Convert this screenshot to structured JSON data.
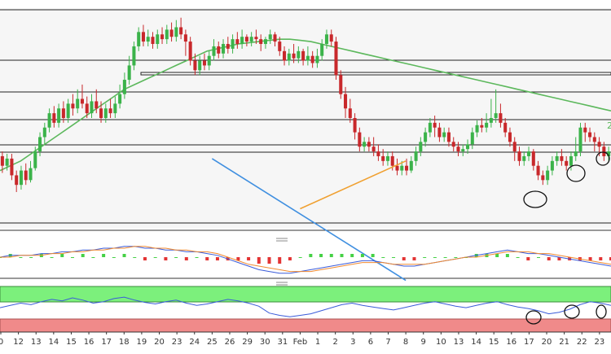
{
  "chart_data": [
    {
      "type": "candlestick",
      "panel": "price",
      "x_tick_labels": [
        "0",
        "12",
        "13",
        "14",
        "15",
        "16",
        "17",
        "18",
        "19",
        "20",
        "23",
        "24",
        "25",
        "26",
        "29",
        "30",
        "31",
        "Feb",
        "1",
        "2",
        "3",
        "6",
        "7",
        "8",
        "9",
        "10",
        "13",
        "14",
        "15",
        "16",
        "17",
        "20",
        "21",
        "22",
        "23"
      ],
      "ma_label": "2",
      "candles": [
        [
          50,
          46,
          43,
          52
        ],
        [
          46,
          49,
          44,
          51
        ],
        [
          49,
          42,
          40,
          51
        ],
        [
          42,
          38,
          35,
          44
        ],
        [
          38,
          44,
          36,
          46
        ],
        [
          44,
          40,
          38,
          47
        ],
        [
          40,
          45,
          39,
          48
        ],
        [
          45,
          52,
          44,
          54
        ],
        [
          52,
          58,
          50,
          60
        ],
        [
          58,
          62,
          55,
          64
        ],
        [
          62,
          68,
          60,
          70
        ],
        [
          68,
          64,
          62,
          71
        ],
        [
          64,
          70,
          62,
          72
        ],
        [
          70,
          66,
          64,
          73
        ],
        [
          66,
          72,
          64,
          74
        ],
        [
          72,
          70,
          67,
          76
        ],
        [
          70,
          74,
          68,
          78
        ],
        [
          74,
          72,
          70,
          80
        ],
        [
          72,
          68,
          66,
          75
        ],
        [
          68,
          73,
          66,
          76
        ],
        [
          73,
          70,
          68,
          78
        ],
        [
          70,
          66,
          64,
          73
        ],
        [
          66,
          70,
          64,
          72
        ],
        [
          70,
          68,
          66,
          74
        ],
        [
          68,
          72,
          66,
          75
        ],
        [
          72,
          76,
          70,
          80
        ],
        [
          76,
          82,
          74,
          85
        ],
        [
          82,
          88,
          80,
          92
        ],
        [
          88,
          96,
          86,
          98
        ],
        [
          96,
          102,
          94,
          104
        ],
        [
          102,
          98,
          96,
          105
        ],
        [
          98,
          100,
          96,
          103
        ],
        [
          100,
          97,
          95,
          102
        ],
        [
          97,
          101,
          95,
          103
        ],
        [
          101,
          99,
          97,
          104
        ],
        [
          99,
          103,
          97,
          105
        ],
        [
          103,
          100,
          98,
          106
        ],
        [
          100,
          104,
          98,
          107
        ],
        [
          104,
          101,
          99,
          108
        ],
        [
          101,
          98,
          92,
          103
        ],
        [
          98,
          90,
          88,
          100
        ],
        [
          90,
          86,
          84,
          93
        ],
        [
          86,
          90,
          84,
          92
        ],
        [
          90,
          88,
          86,
          93
        ],
        [
          88,
          92,
          86,
          94
        ],
        [
          92,
          96,
          90,
          99
        ],
        [
          96,
          93,
          91,
          98
        ],
        [
          93,
          97,
          91,
          99
        ],
        [
          97,
          95,
          93,
          100
        ],
        [
          95,
          99,
          93,
          101
        ],
        [
          99,
          97,
          95,
          102
        ],
        [
          97,
          100,
          95,
          103
        ],
        [
          100,
          98,
          96,
          101
        ],
        [
          98,
          100,
          96,
          102
        ],
        [
          100,
          99,
          97,
          103
        ],
        [
          99,
          97,
          94,
          101
        ],
        [
          97,
          99,
          95,
          100
        ],
        [
          99,
          101,
          97,
          103
        ],
        [
          101,
          98,
          96,
          102
        ],
        [
          98,
          94,
          92,
          100
        ],
        [
          94,
          90,
          88,
          96
        ],
        [
          90,
          93,
          88,
          95
        ],
        [
          93,
          91,
          89,
          97
        ],
        [
          91,
          94,
          89,
          96
        ],
        [
          94,
          90,
          88,
          95
        ],
        [
          90,
          92,
          88,
          96
        ],
        [
          92,
          89,
          87,
          94
        ],
        [
          89,
          92,
          87,
          95
        ],
        [
          92,
          97,
          90,
          99
        ],
        [
          97,
          101,
          95,
          103
        ],
        [
          101,
          98,
          96,
          103
        ],
        [
          98,
          84,
          82,
          100
        ],
        [
          84,
          76,
          74,
          86
        ],
        [
          76,
          70,
          66,
          79
        ],
        [
          70,
          66,
          64,
          74
        ],
        [
          66,
          60,
          57,
          68
        ],
        [
          60,
          54,
          52,
          62
        ],
        [
          54,
          56,
          52,
          58
        ],
        [
          56,
          54,
          52,
          58
        ],
        [
          54,
          52,
          50,
          58
        ],
        [
          52,
          50,
          48,
          55
        ],
        [
          50,
          48,
          46,
          53
        ],
        [
          48,
          50,
          46,
          52
        ],
        [
          50,
          46,
          44,
          52
        ],
        [
          46,
          44,
          42,
          49
        ],
        [
          44,
          46,
          42,
          48
        ],
        [
          46,
          44,
          42,
          49
        ],
        [
          44,
          48,
          43,
          50
        ],
        [
          48,
          52,
          46,
          54
        ],
        [
          52,
          56,
          50,
          58
        ],
        [
          56,
          60,
          54,
          62
        ],
        [
          60,
          64,
          58,
          66
        ],
        [
          64,
          62,
          58,
          67
        ],
        [
          62,
          58,
          56,
          64
        ],
        [
          58,
          60,
          56,
          62
        ],
        [
          60,
          56,
          54,
          62
        ],
        [
          56,
          54,
          52,
          58
        ],
        [
          54,
          52,
          50,
          56
        ],
        [
          52,
          53,
          50,
          55
        ],
        [
          53,
          55,
          51,
          57
        ],
        [
          55,
          60,
          53,
          62
        ],
        [
          60,
          63,
          58,
          65
        ],
        [
          63,
          62,
          60,
          66
        ],
        [
          62,
          64,
          60,
          68
        ],
        [
          64,
          66,
          62,
          74
        ],
        [
          66,
          68,
          64,
          78
        ],
        [
          68,
          64,
          62,
          72
        ],
        [
          64,
          60,
          58,
          66
        ],
        [
          60,
          56,
          54,
          62
        ],
        [
          56,
          52,
          48,
          58
        ],
        [
          52,
          48,
          46,
          54
        ],
        [
          48,
          50,
          46,
          52
        ],
        [
          50,
          52,
          48,
          54
        ],
        [
          52,
          46,
          44,
          53
        ],
        [
          46,
          42,
          40,
          48
        ],
        [
          42,
          40,
          38,
          44
        ],
        [
          40,
          44,
          38,
          46
        ],
        [
          44,
          48,
          42,
          50
        ],
        [
          48,
          50,
          46,
          52
        ],
        [
          50,
          48,
          46,
          53
        ],
        [
          48,
          46,
          44,
          50
        ],
        [
          46,
          50,
          44,
          52
        ],
        [
          50,
          52,
          48,
          58
        ],
        [
          52,
          62,
          50,
          64
        ],
        [
          62,
          60,
          56,
          64
        ],
        [
          60,
          58,
          56,
          62
        ],
        [
          58,
          56,
          52,
          60
        ],
        [
          56,
          54,
          50,
          58
        ],
        [
          54,
          50,
          48,
          56
        ],
        [
          50,
          52,
          48,
          54
        ]
      ],
      "moving_average": [
        44,
        46,
        48,
        51,
        54,
        57,
        60,
        63,
        66,
        69,
        72,
        75,
        78,
        80,
        82,
        84,
        86,
        88,
        90,
        92,
        94,
        95,
        96,
        97,
        97.5,
        98,
        98.5,
        99,
        99,
        98.5,
        98,
        97,
        96,
        95,
        94,
        93,
        92,
        91,
        90,
        89,
        88,
        87,
        86,
        85,
        84,
        83,
        82,
        81,
        80,
        79,
        78,
        77,
        76,
        75,
        74,
        73,
        72,
        71,
        70,
        69
      ],
      "channel_line": [
        [
          12,
          49
        ],
        [
          23,
          -2
        ]
      ],
      "trend_line": [
        [
          17,
          28
        ],
        [
          23,
          48
        ]
      ]
    },
    {
      "type": "line",
      "panel": "oscillator",
      "series": [
        {
          "values": [
            0,
            1,
            1,
            1,
            2,
            2,
            3,
            3,
            4,
            4,
            5,
            5,
            6,
            6,
            5,
            5,
            4,
            4,
            3,
            3,
            2,
            1,
            -1,
            -3,
            -5,
            -7,
            -8,
            -9,
            -9,
            -8,
            -7,
            -6,
            -5,
            -4,
            -3,
            -2,
            -2,
            -3,
            -4,
            -5,
            -5,
            -4,
            -3,
            -2,
            -1,
            0,
            1,
            2,
            3,
            4,
            3,
            2,
            2,
            1,
            0,
            -1,
            -2,
            -3,
            -4,
            -5
          ]
        },
        {
          "values": [
            0,
            0,
            1,
            1,
            1,
            2,
            2,
            3,
            3,
            4,
            4,
            5,
            5,
            6,
            6,
            5,
            5,
            4,
            4,
            3,
            3,
            2,
            0,
            -2,
            -4,
            -5,
            -6,
            -7,
            -8,
            -8,
            -8,
            -7,
            -6,
            -5,
            -4,
            -3,
            -3,
            -3,
            -4,
            -4,
            -4,
            -4,
            -3,
            -2,
            -1,
            0,
            0,
            1,
            2,
            3,
            3,
            3,
            2,
            2,
            1,
            0,
            -1,
            -2,
            -3,
            -4
          ]
        }
      ]
    },
    {
      "type": "line",
      "panel": "rsi",
      "series": [
        {
          "values": [
            52,
            55,
            58,
            56,
            60,
            63,
            61,
            65,
            62,
            58,
            60,
            64,
            66,
            62,
            59,
            57,
            60,
            62,
            58,
            55,
            57,
            60,
            63,
            61,
            58,
            54,
            45,
            42,
            40,
            42,
            44,
            48,
            52,
            56,
            58,
            55,
            53,
            51,
            49,
            52,
            55,
            58,
            60,
            57,
            54,
            52,
            55,
            58,
            60,
            56,
            53,
            51,
            48,
            44,
            46,
            50,
            56,
            60,
            58,
            55
          ]
        }
      ]
    }
  ]
}
